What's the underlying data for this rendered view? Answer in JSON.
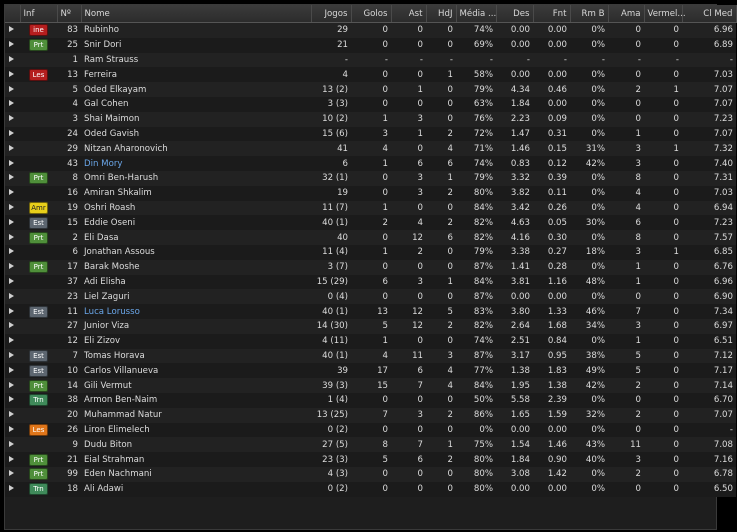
{
  "headers": {
    "inf": "Inf",
    "no": "Nº",
    "name": "Nome",
    "apps": "Jogos",
    "goals": "Golos",
    "assists": "Ast",
    "pom": "HdJ",
    "pass": "Média ...",
    "tackles": "Des",
    "shots": "Fnt",
    "ratio": "Rm B",
    "yellow": "Ama",
    "red": "Vermel...",
    "rating": "Cl Med"
  },
  "badge_colors": {
    "Prt": "#4f8f3a",
    "ine": "#b51e1e",
    "Les": "#b51e1e",
    "Amr": "#e8cf1a",
    "Est": "#5d6670",
    "Trn": "#3f8a5a"
  },
  "link_color": "#6aa6e8",
  "rows": [
    {
      "badge": "ine",
      "badge_class": "b-ine",
      "no": "83",
      "name": "Rubinho",
      "apps": "29",
      "goals": "0",
      "assists": "0",
      "pom": "0",
      "pass": "74%",
      "tackles": "0.00",
      "shots": "0.00",
      "ratio": "0%",
      "yellow": "0",
      "red": "0",
      "rating": "6.96"
    },
    {
      "badge": "Prt",
      "badge_class": "b-prt",
      "no": "25",
      "name": "Snir Dori",
      "apps": "21",
      "goals": "0",
      "assists": "0",
      "pom": "0",
      "pass": "69%",
      "tackles": "0.00",
      "shots": "0.00",
      "ratio": "0%",
      "yellow": "0",
      "red": "0",
      "rating": "6.89"
    },
    {
      "badge": "",
      "badge_class": "",
      "no": "1",
      "name": "Ram Strauss",
      "apps": "-",
      "goals": "-",
      "assists": "-",
      "pom": "-",
      "pass": "-",
      "tackles": "-",
      "shots": "-",
      "ratio": "-",
      "yellow": "-",
      "red": "-",
      "rating": "-"
    },
    {
      "badge": "Les",
      "badge_class": "b-les",
      "no": "13",
      "name": "Ferreira",
      "apps": "4",
      "goals": "0",
      "assists": "0",
      "pom": "1",
      "pass": "58%",
      "tackles": "0.00",
      "shots": "0.00",
      "ratio": "0%",
      "yellow": "0",
      "red": "0",
      "rating": "7.03"
    },
    {
      "badge": "",
      "badge_class": "",
      "no": "5",
      "name": "Oded Elkayam",
      "apps": "13 (2)",
      "goals": "0",
      "assists": "1",
      "pom": "0",
      "pass": "79%",
      "tackles": "4.34",
      "shots": "0.46",
      "ratio": "0%",
      "yellow": "2",
      "red": "1",
      "rating": "7.07"
    },
    {
      "badge": "",
      "badge_class": "",
      "no": "4",
      "name": "Gal Cohen",
      "apps": "3 (3)",
      "goals": "0",
      "assists": "0",
      "pom": "0",
      "pass": "63%",
      "tackles": "1.84",
      "shots": "0.00",
      "ratio": "0%",
      "yellow": "0",
      "red": "0",
      "rating": "7.07"
    },
    {
      "badge": "",
      "badge_class": "",
      "no": "3",
      "name": "Shai Maimon",
      "apps": "10 (2)",
      "goals": "1",
      "assists": "3",
      "pom": "0",
      "pass": "76%",
      "tackles": "2.23",
      "shots": "0.09",
      "ratio": "0%",
      "yellow": "0",
      "red": "0",
      "rating": "7.23"
    },
    {
      "badge": "",
      "badge_class": "",
      "no": "24",
      "name": "Oded Gavish",
      "apps": "15 (6)",
      "goals": "3",
      "assists": "1",
      "pom": "2",
      "pass": "72%",
      "tackles": "1.47",
      "shots": "0.31",
      "ratio": "0%",
      "yellow": "1",
      "red": "0",
      "rating": "7.07"
    },
    {
      "badge": "",
      "badge_class": "",
      "no": "29",
      "name": "Nitzan Aharonovich",
      "apps": "41",
      "goals": "4",
      "assists": "0",
      "pom": "4",
      "pass": "71%",
      "tackles": "1.46",
      "shots": "0.15",
      "ratio": "31%",
      "yellow": "3",
      "red": "1",
      "rating": "7.32"
    },
    {
      "badge": "",
      "badge_class": "",
      "no": "43",
      "name": "Din Mory",
      "link": true,
      "apps": "6",
      "goals": "1",
      "assists": "6",
      "pom": "6",
      "pass": "74%",
      "tackles": "0.83",
      "shots": "0.12",
      "ratio": "42%",
      "yellow": "3",
      "red": "0",
      "rating": "7.40"
    },
    {
      "badge": "Prt",
      "badge_class": "b-prt",
      "no": "8",
      "name": "Omri Ben-Harush",
      "apps": "32 (1)",
      "goals": "0",
      "assists": "3",
      "pom": "1",
      "pass": "79%",
      "tackles": "3.32",
      "shots": "0.39",
      "ratio": "0%",
      "yellow": "8",
      "red": "0",
      "rating": "7.31"
    },
    {
      "badge": "",
      "badge_class": "",
      "no": "16",
      "name": "Amiran Shkalim",
      "apps": "19",
      "goals": "0",
      "assists": "3",
      "pom": "2",
      "pass": "80%",
      "tackles": "3.82",
      "shots": "0.11",
      "ratio": "0%",
      "yellow": "4",
      "red": "0",
      "rating": "7.03"
    },
    {
      "badge": "Amr",
      "badge_class": "b-amr",
      "no": "19",
      "name": "Oshri Roash",
      "apps": "11 (7)",
      "goals": "1",
      "assists": "0",
      "pom": "0",
      "pass": "84%",
      "tackles": "3.42",
      "shots": "0.26",
      "ratio": "0%",
      "yellow": "4",
      "red": "0",
      "rating": "6.94"
    },
    {
      "badge": "Est",
      "badge_class": "b-est",
      "no": "15",
      "name": "Eddie Oseni",
      "apps": "40 (1)",
      "goals": "2",
      "assists": "4",
      "pom": "2",
      "pass": "82%",
      "tackles": "4.63",
      "shots": "0.05",
      "ratio": "30%",
      "yellow": "6",
      "red": "0",
      "rating": "7.23"
    },
    {
      "badge": "Prt",
      "badge_class": "b-prt",
      "no": "2",
      "name": "Eli Dasa",
      "apps": "40",
      "goals": "0",
      "assists": "12",
      "pom": "6",
      "pass": "82%",
      "tackles": "4.16",
      "shots": "0.30",
      "ratio": "0%",
      "yellow": "8",
      "red": "0",
      "rating": "7.57"
    },
    {
      "badge": "",
      "badge_class": "",
      "no": "6",
      "name": "Jonathan Assous",
      "apps": "11 (4)",
      "goals": "1",
      "assists": "2",
      "pom": "0",
      "pass": "79%",
      "tackles": "3.38",
      "shots": "0.27",
      "ratio": "18%",
      "yellow": "3",
      "red": "1",
      "rating": "6.85"
    },
    {
      "badge": "Prt",
      "badge_class": "b-prt",
      "no": "17",
      "name": "Barak Moshe",
      "apps": "3 (7)",
      "goals": "0",
      "assists": "0",
      "pom": "0",
      "pass": "87%",
      "tackles": "1.41",
      "shots": "0.28",
      "ratio": "0%",
      "yellow": "1",
      "red": "0",
      "rating": "6.76"
    },
    {
      "badge": "",
      "badge_class": "",
      "no": "37",
      "name": "Adi Elisha",
      "apps": "15 (29)",
      "goals": "6",
      "assists": "3",
      "pom": "1",
      "pass": "84%",
      "tackles": "3.81",
      "shots": "1.16",
      "ratio": "48%",
      "yellow": "1",
      "red": "0",
      "rating": "6.96"
    },
    {
      "badge": "",
      "badge_class": "",
      "no": "23",
      "name": "Liel Zaguri",
      "apps": "0 (4)",
      "goals": "0",
      "assists": "0",
      "pom": "0",
      "pass": "87%",
      "tackles": "0.00",
      "shots": "0.00",
      "ratio": "0%",
      "yellow": "0",
      "red": "0",
      "rating": "6.90"
    },
    {
      "badge": "Est",
      "badge_class": "b-est",
      "no": "11",
      "name": "Luca Lorusso",
      "link": true,
      "apps": "40 (1)",
      "goals": "13",
      "assists": "12",
      "pom": "5",
      "pass": "83%",
      "tackles": "3.80",
      "shots": "1.33",
      "ratio": "46%",
      "yellow": "7",
      "red": "0",
      "rating": "7.34"
    },
    {
      "badge": "",
      "badge_class": "",
      "no": "27",
      "name": "Junior Viza",
      "apps": "14 (30)",
      "goals": "5",
      "assists": "12",
      "pom": "2",
      "pass": "82%",
      "tackles": "2.64",
      "shots": "1.68",
      "ratio": "34%",
      "yellow": "3",
      "red": "0",
      "rating": "6.97"
    },
    {
      "badge": "",
      "badge_class": "",
      "no": "12",
      "name": "Eli Zizov",
      "apps": "4 (11)",
      "goals": "1",
      "assists": "0",
      "pom": "0",
      "pass": "74%",
      "tackles": "2.51",
      "shots": "0.84",
      "ratio": "0%",
      "yellow": "1",
      "red": "0",
      "rating": "6.51"
    },
    {
      "badge": "Est",
      "badge_class": "b-est",
      "no": "7",
      "name": "Tomas Horava",
      "apps": "40 (1)",
      "goals": "4",
      "assists": "11",
      "pom": "3",
      "pass": "87%",
      "tackles": "3.17",
      "shots": "0.95",
      "ratio": "38%",
      "yellow": "5",
      "red": "0",
      "rating": "7.12"
    },
    {
      "badge": "Est",
      "badge_class": "b-est",
      "no": "10",
      "name": "Carlos Villanueva",
      "apps": "39",
      "goals": "17",
      "assists": "6",
      "pom": "4",
      "pass": "77%",
      "tackles": "1.38",
      "shots": "1.83",
      "ratio": "49%",
      "yellow": "5",
      "red": "0",
      "rating": "7.17"
    },
    {
      "badge": "Prt",
      "badge_class": "b-prt",
      "no": "14",
      "name": "Gili Vermut",
      "apps": "39 (3)",
      "goals": "15",
      "assists": "7",
      "pom": "4",
      "pass": "84%",
      "tackles": "1.95",
      "shots": "1.38",
      "ratio": "42%",
      "yellow": "2",
      "red": "0",
      "rating": "7.14"
    },
    {
      "badge": "Trn",
      "badge_class": "b-trn",
      "no": "38",
      "name": "Armon Ben-Naim",
      "apps": "1 (4)",
      "goals": "0",
      "assists": "0",
      "pom": "0",
      "pass": "50%",
      "tackles": "5.58",
      "shots": "2.39",
      "ratio": "0%",
      "yellow": "0",
      "red": "0",
      "rating": "6.70"
    },
    {
      "badge": "",
      "badge_class": "",
      "no": "20",
      "name": "Muhammad Natur",
      "apps": "13 (25)",
      "goals": "7",
      "assists": "3",
      "pom": "2",
      "pass": "86%",
      "tackles": "1.65",
      "shots": "1.59",
      "ratio": "32%",
      "yellow": "2",
      "red": "0",
      "rating": "7.07"
    },
    {
      "badge": "Les",
      "badge_class": "b-les-o",
      "no": "26",
      "name": "Liron Elimelech",
      "apps": "0 (2)",
      "goals": "0",
      "assists": "0",
      "pom": "0",
      "pass": "0%",
      "tackles": "0.00",
      "shots": "0.00",
      "ratio": "0%",
      "yellow": "0",
      "red": "0",
      "rating": "-"
    },
    {
      "badge": "",
      "badge_class": "",
      "no": "9",
      "name": "Dudu Biton",
      "apps": "27 (5)",
      "goals": "8",
      "assists": "7",
      "pom": "1",
      "pass": "75%",
      "tackles": "1.54",
      "shots": "1.46",
      "ratio": "43%",
      "yellow": "11",
      "red": "0",
      "rating": "7.08"
    },
    {
      "badge": "Prt",
      "badge_class": "b-prt",
      "no": "21",
      "name": "Eial Strahman",
      "apps": "23 (3)",
      "goals": "5",
      "assists": "6",
      "pom": "2",
      "pass": "80%",
      "tackles": "1.84",
      "shots": "0.90",
      "ratio": "40%",
      "yellow": "3",
      "red": "0",
      "rating": "7.16"
    },
    {
      "badge": "Prt",
      "badge_class": "b-prt",
      "no": "99",
      "name": "Eden Nachmani",
      "apps": "4 (3)",
      "goals": "0",
      "assists": "0",
      "pom": "0",
      "pass": "80%",
      "tackles": "3.08",
      "shots": "1.42",
      "ratio": "0%",
      "yellow": "2",
      "red": "0",
      "rating": "6.78"
    },
    {
      "badge": "Trn",
      "badge_class": "b-trn",
      "no": "18",
      "name": "Ali Adawi",
      "apps": "0 (2)",
      "goals": "0",
      "assists": "0",
      "pom": "0",
      "pass": "80%",
      "tackles": "0.00",
      "shots": "0.00",
      "ratio": "0%",
      "yellow": "0",
      "red": "0",
      "rating": "6.50"
    }
  ]
}
